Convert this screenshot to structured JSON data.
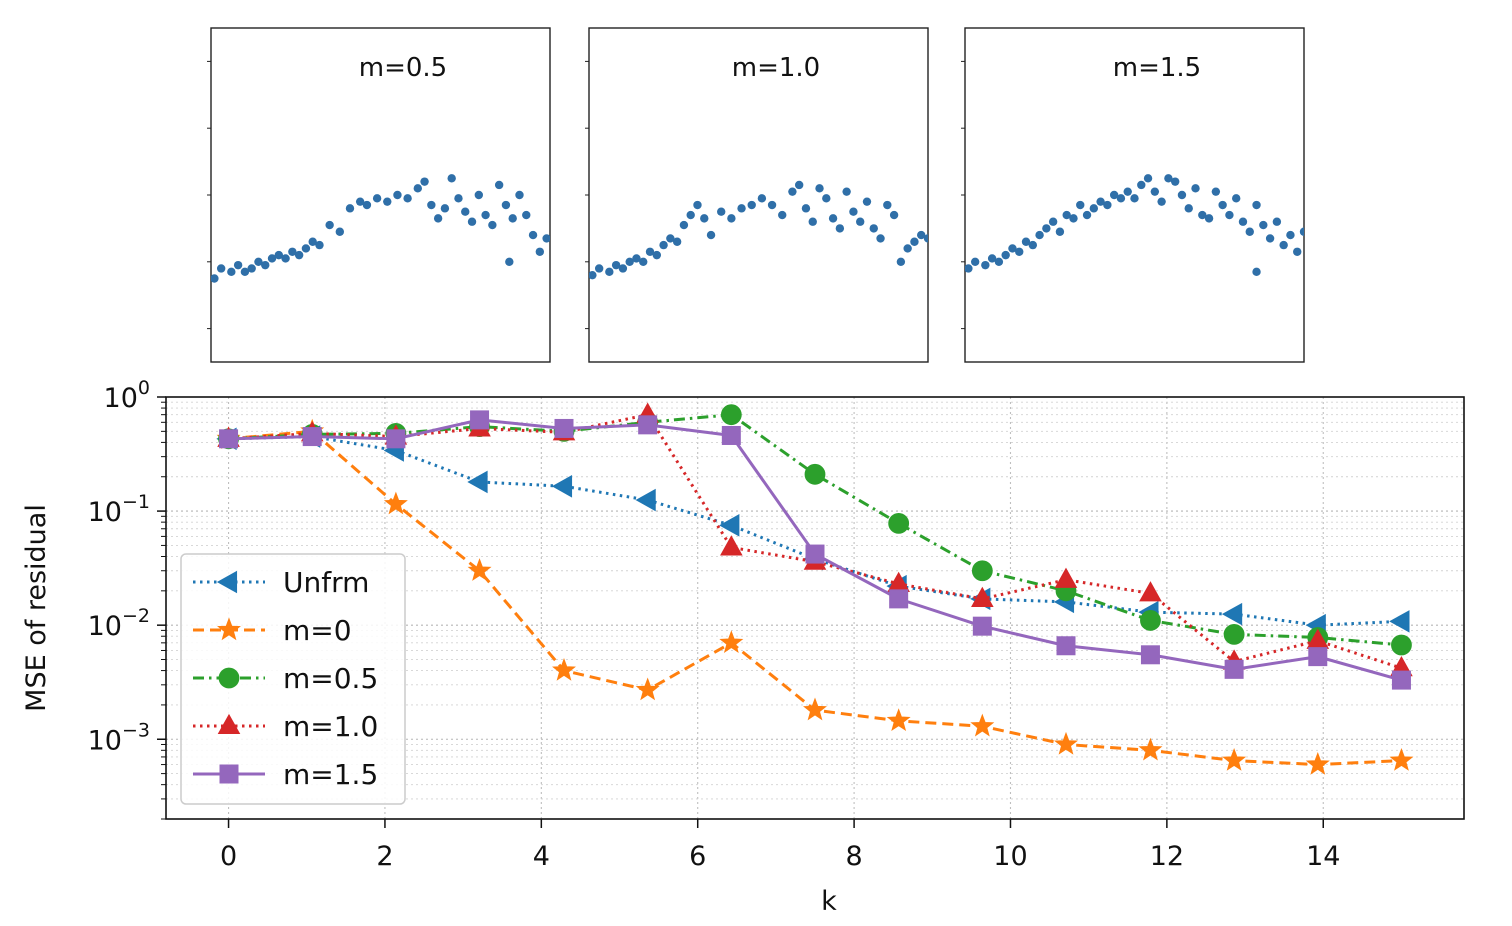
{
  "chart_data": [
    {
      "type": "line",
      "yscale": "log",
      "xlabel": "k",
      "ylabel": "MSE of residual",
      "xlim": [
        -0.8,
        15.8
      ],
      "ylim": [
        0.0002,
        1
      ],
      "xticks": [
        0,
        2,
        4,
        6,
        8,
        10,
        12,
        14
      ],
      "xtick_labels": [
        "0",
        "2",
        "4",
        "6",
        "8",
        "10",
        "12",
        "14"
      ],
      "yticks": [
        {
          "base": "10",
          "exp": "0",
          "value": 1
        },
        {
          "base": "10",
          "exp": "−1",
          "value": 0.1
        },
        {
          "base": "10",
          "exp": "−2",
          "value": 0.01
        },
        {
          "base": "10",
          "exp": "−3",
          "value": 0.001
        }
      ],
      "grid": true,
      "legend_position": "lower-left",
      "x": [
        0,
        1.07,
        2.14,
        3.21,
        4.29,
        5.36,
        6.43,
        7.5,
        8.57,
        9.64,
        10.71,
        11.79,
        12.86,
        13.93,
        15.0
      ],
      "series": [
        {
          "name": "Unfrm",
          "color": "#1f77b4",
          "marker": "triangle-left",
          "line": "dotted",
          "values": [
            0.43,
            0.45,
            0.34,
            0.18,
            0.165,
            0.125,
            0.075,
            0.038,
            0.022,
            0.017,
            0.016,
            0.013,
            0.0125,
            0.01,
            0.0108
          ]
        },
        {
          "name": "m=0",
          "color": "#ff7f0e",
          "marker": "star",
          "line": "dashed",
          "values": [
            0.43,
            0.5,
            0.115,
            0.03,
            0.004,
            0.0027,
            0.007,
            0.0018,
            0.00145,
            0.0013,
            0.0009,
            0.0008,
            0.00065,
            0.0006,
            0.00065
          ]
        },
        {
          "name": "m=0.5",
          "color": "#2ca02c",
          "marker": "circle",
          "line": "dashdot",
          "values": [
            0.43,
            0.47,
            0.48,
            0.55,
            0.5,
            0.6,
            0.7,
            0.21,
            0.078,
            0.03,
            0.02,
            0.011,
            0.0083,
            0.0078,
            0.0067
          ]
        },
        {
          "name": "m=1.0",
          "color": "#d62728",
          "marker": "triangle-up",
          "line": "dotted",
          "values": [
            0.43,
            0.48,
            0.45,
            0.53,
            0.49,
            0.7,
            0.048,
            0.036,
            0.023,
            0.017,
            0.025,
            0.019,
            0.0048,
            0.0073,
            0.0042
          ]
        },
        {
          "name": "m=1.5",
          "color": "#9467bd",
          "marker": "square",
          "line": "solid",
          "values": [
            0.43,
            0.45,
            0.43,
            0.63,
            0.53,
            0.57,
            0.46,
            0.042,
            0.017,
            0.0098,
            0.0066,
            0.0055,
            0.0041,
            0.0053,
            0.0033
          ]
        }
      ]
    },
    {
      "type": "scatter",
      "title": "m=0.5",
      "color": "#2f6fa8",
      "points": [
        [
          0.01,
          0.25
        ],
        [
          0.03,
          0.28
        ],
        [
          0.06,
          0.27
        ],
        [
          0.08,
          0.29
        ],
        [
          0.1,
          0.27
        ],
        [
          0.12,
          0.28
        ],
        [
          0.14,
          0.3
        ],
        [
          0.16,
          0.29
        ],
        [
          0.18,
          0.31
        ],
        [
          0.2,
          0.32
        ],
        [
          0.22,
          0.31
        ],
        [
          0.24,
          0.33
        ],
        [
          0.26,
          0.32
        ],
        [
          0.28,
          0.34
        ],
        [
          0.3,
          0.36
        ],
        [
          0.32,
          0.35
        ],
        [
          0.35,
          0.41
        ],
        [
          0.38,
          0.39
        ],
        [
          0.41,
          0.46
        ],
        [
          0.44,
          0.48
        ],
        [
          0.46,
          0.47
        ],
        [
          0.49,
          0.49
        ],
        [
          0.52,
          0.48
        ],
        [
          0.55,
          0.5
        ],
        [
          0.58,
          0.49
        ],
        [
          0.61,
          0.52
        ],
        [
          0.63,
          0.54
        ],
        [
          0.65,
          0.47
        ],
        [
          0.67,
          0.43
        ],
        [
          0.69,
          0.46
        ],
        [
          0.71,
          0.55
        ],
        [
          0.73,
          0.49
        ],
        [
          0.75,
          0.45
        ],
        [
          0.77,
          0.42
        ],
        [
          0.79,
          0.5
        ],
        [
          0.81,
          0.44
        ],
        [
          0.83,
          0.41
        ],
        [
          0.85,
          0.53
        ],
        [
          0.87,
          0.47
        ],
        [
          0.89,
          0.43
        ],
        [
          0.91,
          0.5
        ],
        [
          0.93,
          0.44
        ],
        [
          0.95,
          0.38
        ],
        [
          0.97,
          0.33
        ],
        [
          0.99,
          0.37
        ],
        [
          0.88,
          0.3
        ]
      ]
    },
    {
      "type": "scatter",
      "title": "m=1.0",
      "color": "#2f6fa8",
      "points": [
        [
          0.01,
          0.26
        ],
        [
          0.03,
          0.28
        ],
        [
          0.06,
          0.27
        ],
        [
          0.08,
          0.29
        ],
        [
          0.1,
          0.28
        ],
        [
          0.12,
          0.3
        ],
        [
          0.14,
          0.31
        ],
        [
          0.16,
          0.3
        ],
        [
          0.18,
          0.33
        ],
        [
          0.2,
          0.32
        ],
        [
          0.22,
          0.35
        ],
        [
          0.24,
          0.37
        ],
        [
          0.26,
          0.36
        ],
        [
          0.28,
          0.41
        ],
        [
          0.3,
          0.44
        ],
        [
          0.32,
          0.47
        ],
        [
          0.34,
          0.43
        ],
        [
          0.36,
          0.38
        ],
        [
          0.39,
          0.45
        ],
        [
          0.42,
          0.43
        ],
        [
          0.45,
          0.46
        ],
        [
          0.48,
          0.47
        ],
        [
          0.51,
          0.49
        ],
        [
          0.54,
          0.47
        ],
        [
          0.57,
          0.44
        ],
        [
          0.6,
          0.51
        ],
        [
          0.62,
          0.53
        ],
        [
          0.64,
          0.46
        ],
        [
          0.66,
          0.42
        ],
        [
          0.68,
          0.52
        ],
        [
          0.7,
          0.49
        ],
        [
          0.72,
          0.43
        ],
        [
          0.74,
          0.4
        ],
        [
          0.76,
          0.51
        ],
        [
          0.78,
          0.45
        ],
        [
          0.8,
          0.42
        ],
        [
          0.82,
          0.48
        ],
        [
          0.84,
          0.4
        ],
        [
          0.86,
          0.37
        ],
        [
          0.88,
          0.47
        ],
        [
          0.9,
          0.44
        ],
        [
          0.92,
          0.3
        ],
        [
          0.94,
          0.34
        ],
        [
          0.96,
          0.36
        ],
        [
          0.98,
          0.38
        ],
        [
          1.0,
          0.37
        ]
      ]
    },
    {
      "type": "scatter",
      "title": "m=1.5",
      "color": "#2f6fa8",
      "points": [
        [
          0.01,
          0.28
        ],
        [
          0.03,
          0.3
        ],
        [
          0.06,
          0.29
        ],
        [
          0.08,
          0.31
        ],
        [
          0.1,
          0.3
        ],
        [
          0.12,
          0.32
        ],
        [
          0.14,
          0.34
        ],
        [
          0.16,
          0.33
        ],
        [
          0.18,
          0.36
        ],
        [
          0.2,
          0.35
        ],
        [
          0.22,
          0.38
        ],
        [
          0.24,
          0.4
        ],
        [
          0.26,
          0.42
        ],
        [
          0.28,
          0.39
        ],
        [
          0.3,
          0.44
        ],
        [
          0.32,
          0.43
        ],
        [
          0.34,
          0.47
        ],
        [
          0.36,
          0.44
        ],
        [
          0.38,
          0.46
        ],
        [
          0.4,
          0.48
        ],
        [
          0.42,
          0.47
        ],
        [
          0.44,
          0.5
        ],
        [
          0.46,
          0.49
        ],
        [
          0.48,
          0.51
        ],
        [
          0.5,
          0.49
        ],
        [
          0.52,
          0.53
        ],
        [
          0.54,
          0.55
        ],
        [
          0.56,
          0.51
        ],
        [
          0.58,
          0.48
        ],
        [
          0.6,
          0.55
        ],
        [
          0.62,
          0.54
        ],
        [
          0.64,
          0.5
        ],
        [
          0.66,
          0.46
        ],
        [
          0.68,
          0.52
        ],
        [
          0.7,
          0.44
        ],
        [
          0.72,
          0.43
        ],
        [
          0.74,
          0.51
        ],
        [
          0.76,
          0.47
        ],
        [
          0.78,
          0.44
        ],
        [
          0.8,
          0.49
        ],
        [
          0.82,
          0.42
        ],
        [
          0.84,
          0.39
        ],
        [
          0.86,
          0.47
        ],
        [
          0.88,
          0.41
        ],
        [
          0.9,
          0.37
        ],
        [
          0.92,
          0.42
        ],
        [
          0.94,
          0.35
        ],
        [
          0.96,
          0.38
        ],
        [
          0.98,
          0.33
        ],
        [
          0.86,
          0.27
        ],
        [
          1.0,
          0.39
        ]
      ]
    }
  ]
}
